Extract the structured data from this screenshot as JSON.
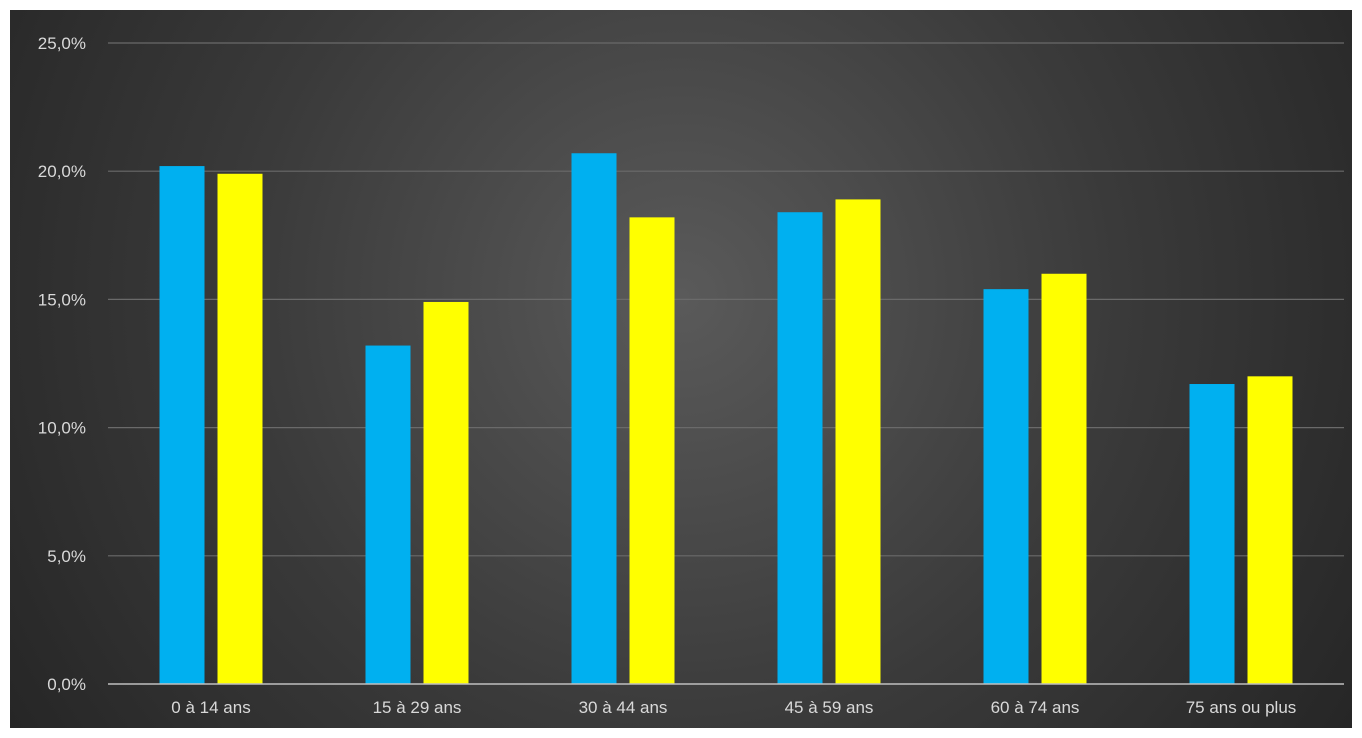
{
  "chart_data": {
    "type": "bar",
    "categories": [
      "0 à 14 ans",
      "15 à 29 ans",
      "30 à 44 ans",
      "45 à 59 ans",
      "60 à 74 ans",
      "75 ans ou plus"
    ],
    "series": [
      {
        "values": [
          20.2,
          13.2,
          20.7,
          18.4,
          15.4,
          11.7
        ],
        "color": "#00B0F0"
      },
      {
        "values": [
          19.9,
          14.9,
          18.2,
          18.9,
          16.0,
          12.0
        ],
        "color": "#FFFF00"
      }
    ],
    "ylim": [
      0,
      25
    ],
    "yticks": [
      0,
      5,
      10,
      15,
      20,
      25
    ],
    "ytick_labels": [
      "0,0%",
      "5,0%",
      "10,0%",
      "15,0%",
      "20,0%",
      "25,0%"
    ],
    "grid": true,
    "title": "",
    "xlabel": "",
    "ylabel": ""
  }
}
